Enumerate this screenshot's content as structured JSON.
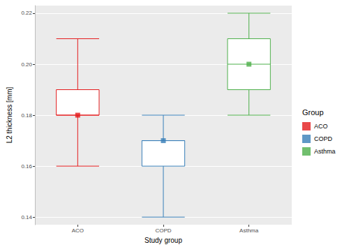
{
  "chart_data": {
    "type": "boxplot",
    "x_label": "Study group",
    "y_label": "L2 thickness [mm]",
    "legend_title": "Group",
    "categories": [
      "ACO",
      "COPD",
      "Asthma"
    ],
    "values": [
      [
        0.16,
        0.18,
        0.18,
        0.19,
        0.21
      ],
      [
        0.14,
        0.16,
        0.17,
        0.17,
        0.18
      ],
      [
        0.18,
        0.19,
        0.2,
        0.21,
        0.22
      ]
    ],
    "colors": [
      "#E41A1C",
      "#377EB8",
      "#4DAF4A"
    ],
    "marker": "square",
    "ylim": [
      0.137,
      0.223
    ],
    "yticks": [
      0.14,
      0.16,
      0.18,
      {
        "value": 0.2,
        "label": "0.20"
      },
      0.22
    ],
    "grid": true,
    "legend": "right"
  }
}
